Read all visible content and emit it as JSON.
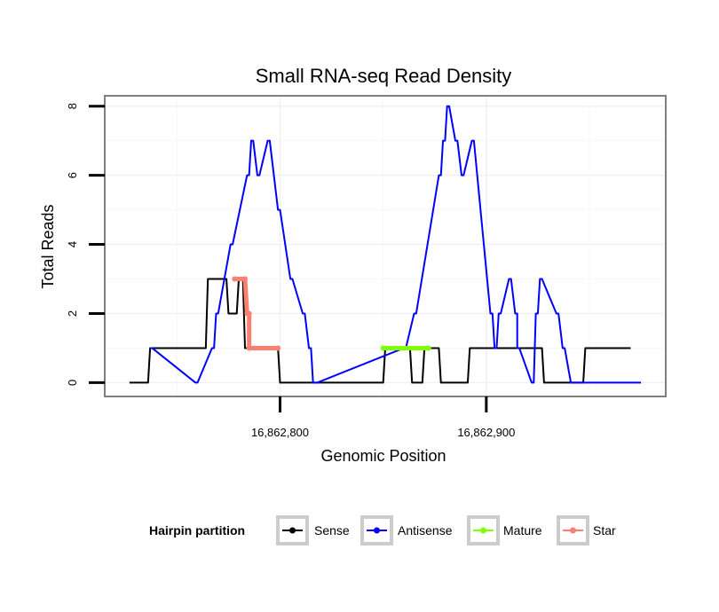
{
  "chart_data": {
    "type": "line",
    "title": "Small RNA-seq Read Density",
    "xlabel": "Genomic Position",
    "ylabel": "Total Reads",
    "xlim": [
      16862715,
      16862987
    ],
    "ylim": [
      -0.4,
      8.3
    ],
    "x_ticks": [
      16862800,
      16862900
    ],
    "x_tick_labels": [
      "16,862,800",
      "16,862,900"
    ],
    "y_ticks": [
      0,
      2,
      4,
      6,
      8
    ],
    "y_tick_labels": [
      "0",
      "2",
      "4",
      "6",
      "8"
    ],
    "grid": true,
    "legend": {
      "title": "Hairpin partition",
      "position": "bottom",
      "entries": [
        {
          "name": "Sense",
          "color": "#000000"
        },
        {
          "name": "Antisense",
          "color": "#0000ff"
        },
        {
          "name": "Mature",
          "color": "#7fff00"
        },
        {
          "name": "Star",
          "color": "#fa8072"
        }
      ]
    },
    "series": [
      {
        "name": "Sense",
        "color": "#000000",
        "step": true,
        "x": [
          16862727,
          16862736,
          16862737,
          16862764,
          16862765,
          16862774,
          16862775,
          16862779,
          16862780,
          16862782,
          16862783,
          16862799,
          16862800,
          16862850,
          16862851,
          16862863,
          16862864,
          16862869,
          16862870,
          16862877,
          16862878,
          16862891,
          16862892,
          16862927,
          16862928,
          16862947,
          16862948,
          16862970
        ],
        "values": [
          0,
          0,
          1,
          1,
          3,
          3,
          2,
          2,
          3,
          3,
          1,
          1,
          0,
          0,
          1,
          1,
          0,
          0,
          1,
          1,
          0,
          0,
          1,
          1,
          0,
          0,
          1,
          1
        ]
      },
      {
        "name": "Antisense",
        "color": "#0000ff",
        "step": true,
        "x": [
          16862737,
          16862738,
          16862759,
          16862760,
          16862767,
          16862768,
          16862769,
          16862770,
          16862776,
          16862777,
          16862784,
          16862785,
          16862786,
          16862787,
          16862789,
          16862790,
          16862794,
          16862795,
          16862799,
          16862800,
          16862805,
          16862806,
          16862811,
          16862812,
          16862814,
          16862815,
          16862816,
          16862817,
          16862817,
          16862818,
          16862860,
          16862861,
          16862865,
          16862866,
          16862877,
          16862878,
          16862879,
          16862880,
          16862881,
          16862882,
          16862885,
          16862886,
          16862888,
          16862889,
          16862893,
          16862894,
          16862902,
          16862903,
          16862904,
          16862905,
          16862906,
          16862907,
          16862911,
          16862912,
          16862914,
          16862915,
          16862915,
          16862916,
          16862922,
          16862923,
          16862924,
          16862925,
          16862926,
          16862927,
          16862934,
          16862935,
          16862937,
          16862938,
          16862941,
          16862942,
          16862946,
          16862947,
          16862951,
          16862952,
          16862953,
          16862954,
          16862955,
          16862956,
          16862969,
          16862970,
          16862971,
          16862972,
          16862975
        ],
        "values": [
          1,
          1,
          0,
          0,
          1,
          1,
          2,
          2,
          4,
          4,
          6,
          6,
          7,
          7,
          6,
          6,
          7,
          7,
          5,
          5,
          3,
          3,
          2,
          2,
          1,
          1,
          0,
          0,
          0,
          0,
          1,
          1,
          2,
          2,
          6,
          6,
          7,
          7,
          8,
          8,
          7,
          7,
          6,
          6,
          7,
          7,
          2,
          2,
          1,
          1,
          2,
          2,
          3,
          3,
          2,
          2,
          1,
          1,
          0,
          0,
          2,
          2,
          3,
          3,
          2,
          2,
          1,
          1,
          0,
          0,
          0,
          0,
          0,
          0,
          0,
          0,
          0,
          0,
          0,
          0,
          0,
          0,
          0
        ]
      },
      {
        "name": "Mature",
        "color": "#7fff00",
        "step": false,
        "x": [
          16862850,
          16862872
        ],
        "values": [
          1,
          1
        ]
      },
      {
        "name": "Star",
        "color": "#fa8072",
        "step": true,
        "x": [
          16862778,
          16862783,
          16862784,
          16862785,
          16862785,
          16862799
        ],
        "values": [
          3,
          3,
          2,
          2,
          1,
          1
        ]
      }
    ]
  }
}
